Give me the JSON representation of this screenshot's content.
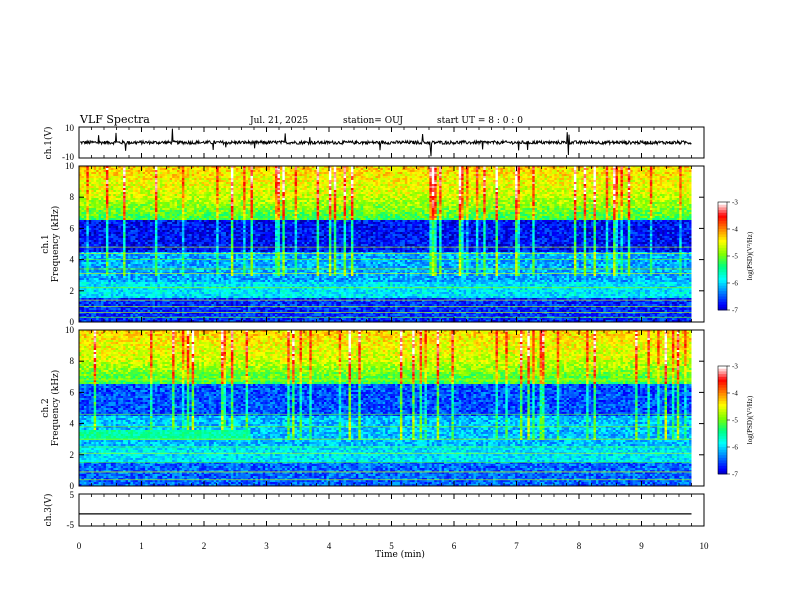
{
  "header": {
    "title": "VLF Spectra",
    "date": "Jul. 21, 2025",
    "station": "station= OUJ",
    "start": "start UT =  8 : 0 : 0"
  },
  "chart_data": [
    {
      "type": "line",
      "name": "ch1-waveform",
      "ylabel": "ch.1(V)",
      "ylim": [
        -10,
        10
      ],
      "yticks": [
        "10",
        "-10"
      ],
      "xlim": [
        0,
        10
      ],
      "baseline": 0,
      "color": "#000000"
    },
    {
      "type": "heatmap",
      "name": "ch1-spectrogram",
      "ylabel": "ch.1\nFrequency (kHz)",
      "ylim": [
        0,
        10
      ],
      "yticks": [
        "0",
        "2",
        "4",
        "6",
        "8",
        "10"
      ],
      "xlim": [
        0,
        9.8
      ],
      "colorbar": {
        "label": "log(PSD)(V²/Hz)",
        "range": [
          -7,
          -3
        ],
        "ticks": [
          "-3",
          "-4",
          "-5",
          "-6",
          "-7"
        ]
      }
    },
    {
      "type": "heatmap",
      "name": "ch2-spectrogram",
      "ylabel": "ch.2\nFrequency (kHz)",
      "ylim": [
        0,
        10
      ],
      "yticks": [
        "0",
        "2",
        "4",
        "6",
        "8",
        "10"
      ],
      "xlim": [
        0,
        9.8
      ],
      "colorbar": {
        "label": "log(PSD)(V²/Hz)",
        "range": [
          -7,
          -3
        ],
        "ticks": [
          "-3",
          "-4",
          "-5",
          "-6",
          "-7"
        ]
      }
    },
    {
      "type": "line",
      "name": "ch3-waveform",
      "ylabel": "ch.3(V)",
      "ylim": [
        -5,
        5
      ],
      "yticks": [
        "5",
        "-5"
      ],
      "xlim": [
        0,
        10
      ],
      "x": [
        0,
        9.8
      ],
      "y": [
        -1.2,
        -1.2
      ],
      "color": "#000000"
    }
  ],
  "xaxis": {
    "label": "Time (min)",
    "ticks": [
      "0",
      "1",
      "2",
      "3",
      "4",
      "5",
      "6",
      "7",
      "8",
      "9",
      "10"
    ]
  },
  "colormap": [
    "#000066",
    "#0000ff",
    "#0080ff",
    "#00ffff",
    "#00ff80",
    "#80ff00",
    "#ffff00",
    "#ff8000",
    "#ff0000",
    "#ffffff"
  ]
}
